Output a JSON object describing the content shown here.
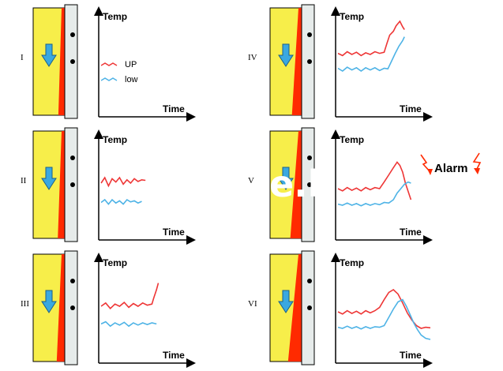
{
  "colors": {
    "wall_yellow": "#f7ee4a",
    "wall_red": "#ff2a00",
    "panel_grey": "#e6ebea",
    "arrow_blue": "#3aa8e0",
    "up_line": "#ee3636",
    "low_line": "#4eb3e6"
  },
  "axis_labels": {
    "y": "Temp",
    "x": "Time"
  },
  "legend": {
    "up": "UP",
    "low": "low"
  },
  "alarm_text": "Alarm",
  "overlay_text": "e.l",
  "panels": [
    {
      "id": "I",
      "label": "I",
      "red_growth": 0.15,
      "up": [],
      "low": []
    },
    {
      "id": "II",
      "label": "II",
      "red_growth": 0.2,
      "up": [
        [
          0,
          0.6
        ],
        [
          0.04,
          0.7
        ],
        [
          0.08,
          0.55
        ],
        [
          0.12,
          0.68
        ],
        [
          0.16,
          0.62
        ],
        [
          0.2,
          0.7
        ],
        [
          0.24,
          0.58
        ],
        [
          0.28,
          0.66
        ],
        [
          0.32,
          0.6
        ],
        [
          0.36,
          0.68
        ],
        [
          0.4,
          0.63
        ],
        [
          0.44,
          0.66
        ],
        [
          0.48,
          0.65
        ]
      ],
      "low": [
        [
          0,
          0.25
        ],
        [
          0.04,
          0.3
        ],
        [
          0.08,
          0.22
        ],
        [
          0.12,
          0.3
        ],
        [
          0.16,
          0.24
        ],
        [
          0.2,
          0.28
        ],
        [
          0.24,
          0.22
        ],
        [
          0.28,
          0.3
        ],
        [
          0.32,
          0.26
        ],
        [
          0.36,
          0.28
        ],
        [
          0.4,
          0.24
        ],
        [
          0.44,
          0.27
        ]
      ]
    },
    {
      "id": "III",
      "label": "III",
      "red_growth": 0.3,
      "up": [
        [
          0,
          0.6
        ],
        [
          0.05,
          0.66
        ],
        [
          0.1,
          0.56
        ],
        [
          0.15,
          0.64
        ],
        [
          0.2,
          0.6
        ],
        [
          0.25,
          0.67
        ],
        [
          0.3,
          0.58
        ],
        [
          0.35,
          0.65
        ],
        [
          0.4,
          0.6
        ],
        [
          0.45,
          0.66
        ],
        [
          0.5,
          0.62
        ],
        [
          0.55,
          0.64
        ],
        [
          0.57,
          0.75
        ],
        [
          0.6,
          0.9
        ],
        [
          0.62,
          1.02
        ]
      ],
      "low": [
        [
          0,
          0.28
        ],
        [
          0.05,
          0.32
        ],
        [
          0.1,
          0.24
        ],
        [
          0.15,
          0.3
        ],
        [
          0.2,
          0.26
        ],
        [
          0.25,
          0.31
        ],
        [
          0.3,
          0.24
        ],
        [
          0.35,
          0.3
        ],
        [
          0.4,
          0.26
        ],
        [
          0.45,
          0.3
        ],
        [
          0.5,
          0.27
        ],
        [
          0.55,
          0.3
        ],
        [
          0.6,
          0.28
        ]
      ]
    },
    {
      "id": "IV",
      "label": "IV",
      "red_growth": 0.45,
      "up": [
        [
          0,
          0.72
        ],
        [
          0.05,
          0.68
        ],
        [
          0.1,
          0.75
        ],
        [
          0.15,
          0.7
        ],
        [
          0.2,
          0.74
        ],
        [
          0.25,
          0.68
        ],
        [
          0.3,
          0.73
        ],
        [
          0.35,
          0.7
        ],
        [
          0.4,
          0.75
        ],
        [
          0.45,
          0.72
        ],
        [
          0.5,
          0.74
        ],
        [
          0.53,
          0.9
        ],
        [
          0.56,
          1.05
        ],
        [
          0.6,
          1.12
        ],
        [
          0.63,
          1.22
        ],
        [
          0.67,
          1.3
        ],
        [
          0.7,
          1.2
        ],
        [
          0.72,
          1.15
        ]
      ],
      "low": [
        [
          0,
          0.45
        ],
        [
          0.05,
          0.4
        ],
        [
          0.1,
          0.47
        ],
        [
          0.15,
          0.42
        ],
        [
          0.2,
          0.46
        ],
        [
          0.25,
          0.4
        ],
        [
          0.3,
          0.46
        ],
        [
          0.35,
          0.42
        ],
        [
          0.4,
          0.46
        ],
        [
          0.45,
          0.41
        ],
        [
          0.5,
          0.45
        ],
        [
          0.54,
          0.44
        ],
        [
          0.58,
          0.58
        ],
        [
          0.62,
          0.72
        ],
        [
          0.66,
          0.85
        ],
        [
          0.7,
          0.95
        ],
        [
          0.72,
          1.02
        ]
      ]
    },
    {
      "id": "V",
      "label": "V",
      "red_growth": 0.6,
      "up": [
        [
          0,
          0.5
        ],
        [
          0.05,
          0.46
        ],
        [
          0.1,
          0.52
        ],
        [
          0.15,
          0.47
        ],
        [
          0.2,
          0.51
        ],
        [
          0.25,
          0.46
        ],
        [
          0.3,
          0.52
        ],
        [
          0.35,
          0.48
        ],
        [
          0.4,
          0.52
        ],
        [
          0.45,
          0.5
        ],
        [
          0.5,
          0.62
        ],
        [
          0.55,
          0.75
        ],
        [
          0.6,
          0.88
        ],
        [
          0.64,
          0.98
        ],
        [
          0.67,
          0.92
        ],
        [
          0.7,
          0.8
        ],
        [
          0.73,
          0.6
        ],
        [
          0.76,
          0.45
        ],
        [
          0.79,
          0.3
        ]
      ],
      "low": [
        [
          0,
          0.22
        ],
        [
          0.05,
          0.2
        ],
        [
          0.1,
          0.24
        ],
        [
          0.15,
          0.2
        ],
        [
          0.2,
          0.23
        ],
        [
          0.25,
          0.19
        ],
        [
          0.3,
          0.23
        ],
        [
          0.35,
          0.2
        ],
        [
          0.4,
          0.23
        ],
        [
          0.45,
          0.21
        ],
        [
          0.5,
          0.25
        ],
        [
          0.55,
          0.24
        ],
        [
          0.6,
          0.3
        ],
        [
          0.64,
          0.42
        ],
        [
          0.68,
          0.5
        ],
        [
          0.72,
          0.58
        ],
        [
          0.76,
          0.62
        ],
        [
          0.79,
          0.6
        ]
      ]
    },
    {
      "id": "VI",
      "label": "VI",
      "red_growth": 0.8,
      "up": [
        [
          0,
          0.5
        ],
        [
          0.05,
          0.46
        ],
        [
          0.1,
          0.52
        ],
        [
          0.15,
          0.47
        ],
        [
          0.2,
          0.51
        ],
        [
          0.25,
          0.46
        ],
        [
          0.3,
          0.52
        ],
        [
          0.35,
          0.48
        ],
        [
          0.4,
          0.52
        ],
        [
          0.45,
          0.58
        ],
        [
          0.5,
          0.72
        ],
        [
          0.55,
          0.85
        ],
        [
          0.6,
          0.9
        ],
        [
          0.65,
          0.82
        ],
        [
          0.7,
          0.66
        ],
        [
          0.75,
          0.48
        ],
        [
          0.8,
          0.35
        ],
        [
          0.85,
          0.25
        ],
        [
          0.9,
          0.2
        ],
        [
          0.95,
          0.22
        ],
        [
          1.0,
          0.21
        ]
      ],
      "low": [
        [
          0,
          0.22
        ],
        [
          0.05,
          0.2
        ],
        [
          0.1,
          0.24
        ],
        [
          0.15,
          0.2
        ],
        [
          0.2,
          0.23
        ],
        [
          0.25,
          0.19
        ],
        [
          0.3,
          0.23
        ],
        [
          0.35,
          0.2
        ],
        [
          0.4,
          0.23
        ],
        [
          0.45,
          0.22
        ],
        [
          0.5,
          0.25
        ],
        [
          0.55,
          0.4
        ],
        [
          0.6,
          0.55
        ],
        [
          0.65,
          0.68
        ],
        [
          0.7,
          0.72
        ],
        [
          0.74,
          0.6
        ],
        [
          0.78,
          0.45
        ],
        [
          0.82,
          0.3
        ],
        [
          0.86,
          0.18
        ],
        [
          0.9,
          0.08
        ],
        [
          0.95,
          0.02
        ],
        [
          1.0,
          0.0
        ]
      ]
    }
  ]
}
